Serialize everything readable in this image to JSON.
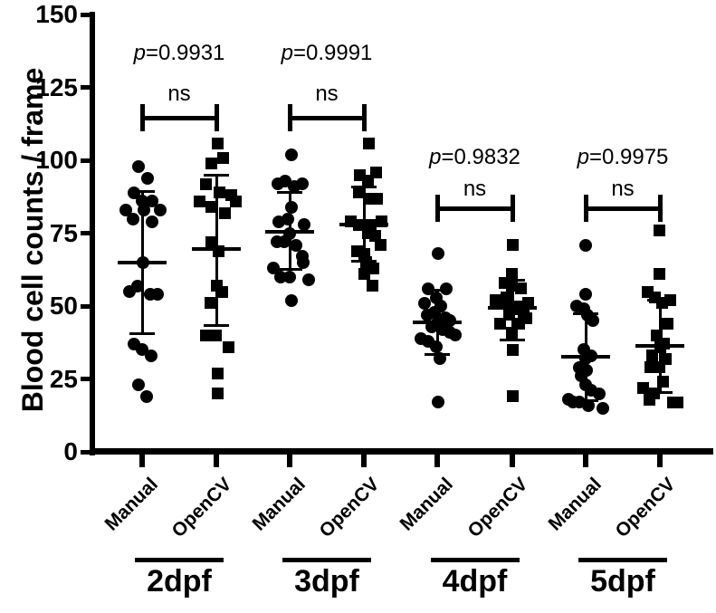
{
  "chart_data": {
    "type": "scatter",
    "title": "",
    "xlabel": "",
    "ylabel": "Blood cell counts / frame",
    "ylim": [
      0,
      150
    ],
    "yticks": [
      0,
      25,
      50,
      75,
      100,
      125,
      150
    ],
    "grid": false,
    "legend_position": "none",
    "marker_key": {
      "Manual": "circle",
      "OpenCV": "square"
    },
    "timepoints": [
      "2dpf",
      "3dpf",
      "4dpf",
      "5dpf"
    ],
    "error_bar_style": "mean with upper/lower whiskers",
    "groups": [
      {
        "timepoint": "2dpf",
        "method": "Manual",
        "marker": "circle",
        "mean": 65,
        "whisker_upper": 89.5,
        "whisker_lower": 40.5,
        "points_value_jitter": [
          [
            98,
            -4
          ],
          [
            94,
            6
          ],
          [
            89,
            -9
          ],
          [
            86,
            0
          ],
          [
            86,
            11
          ],
          [
            83,
            -18
          ],
          [
            83,
            2
          ],
          [
            83,
            20
          ],
          [
            80,
            -10
          ],
          [
            79,
            11
          ],
          [
            65,
            1
          ],
          [
            57,
            -5
          ],
          [
            55,
            -14
          ],
          [
            54,
            9
          ],
          [
            54,
            17
          ],
          [
            37,
            -9
          ],
          [
            35,
            0
          ],
          [
            33,
            10
          ],
          [
            23,
            -4
          ],
          [
            19,
            5
          ]
        ]
      },
      {
        "timepoint": "2dpf",
        "method": "OpenCV",
        "marker": "square",
        "mean": 69.5,
        "whisker_upper": 95,
        "whisker_lower": 43.5,
        "points_value_jitter": [
          [
            106,
            1
          ],
          [
            101,
            7
          ],
          [
            99,
            -6
          ],
          [
            92,
            -12
          ],
          [
            89,
            3
          ],
          [
            88,
            16
          ],
          [
            86,
            -19
          ],
          [
            86,
            21
          ],
          [
            84,
            -6
          ],
          [
            82,
            9
          ],
          [
            72,
            -6
          ],
          [
            69,
            2
          ],
          [
            57,
            0
          ],
          [
            55,
            6
          ],
          [
            51,
            -7
          ],
          [
            40,
            -12
          ],
          [
            40,
            -1
          ],
          [
            36,
            13
          ],
          [
            27,
            1
          ],
          [
            20,
            1
          ]
        ]
      },
      {
        "timepoint": "3dpf",
        "method": "Manual",
        "marker": "circle",
        "mean": 75.5,
        "whisker_upper": 89,
        "whisker_lower": 62.5,
        "points_value_jitter": [
          [
            102,
            2
          ],
          [
            93,
            -5
          ],
          [
            92,
            -13
          ],
          [
            92,
            14
          ],
          [
            91,
            5
          ],
          [
            84,
            2
          ],
          [
            80,
            -2
          ],
          [
            79,
            -12
          ],
          [
            78,
            16
          ],
          [
            75,
            0
          ],
          [
            72,
            -14
          ],
          [
            72,
            -6
          ],
          [
            71,
            7
          ],
          [
            67,
            14
          ],
          [
            65,
            15
          ],
          [
            63,
            -18
          ],
          [
            60,
            -10
          ],
          [
            60,
            0
          ],
          [
            59,
            21
          ],
          [
            52,
            2
          ]
        ]
      },
      {
        "timepoint": "3dpf",
        "method": "OpenCV",
        "marker": "square",
        "mean": 78,
        "whisker_upper": 91,
        "whisker_lower": 65.5,
        "points_value_jitter": [
          [
            106,
            5
          ],
          [
            96,
            13
          ],
          [
            95,
            -5
          ],
          [
            93,
            4
          ],
          [
            89,
            -6
          ],
          [
            87,
            5
          ],
          [
            87,
            14
          ],
          [
            79,
            -15
          ],
          [
            79,
            19
          ],
          [
            78,
            -6
          ],
          [
            78,
            7
          ],
          [
            75,
            4
          ],
          [
            74,
            12
          ],
          [
            71,
            18
          ],
          [
            69,
            -8
          ],
          [
            68,
            0
          ],
          [
            65,
            2
          ],
          [
            63,
            10
          ],
          [
            61,
            0
          ],
          [
            57,
            9
          ]
        ]
      },
      {
        "timepoint": "4dpf",
        "method": "Manual",
        "marker": "circle",
        "mean": 44.5,
        "whisker_upper": 55.5,
        "whisker_lower": 33.5,
        "points_value_jitter": [
          [
            68,
            1
          ],
          [
            56,
            -10
          ],
          [
            56,
            10
          ],
          [
            53,
            -1
          ],
          [
            51,
            -14
          ],
          [
            50,
            4
          ],
          [
            48,
            -3
          ],
          [
            47,
            -11
          ],
          [
            46,
            9
          ],
          [
            45,
            14
          ],
          [
            44,
            0
          ],
          [
            43,
            -6
          ],
          [
            42,
            6
          ],
          [
            41,
            14
          ],
          [
            40,
            20
          ],
          [
            39,
            -18
          ],
          [
            38,
            -10
          ],
          [
            36,
            -1
          ],
          [
            32,
            3
          ],
          [
            17,
            1
          ]
        ]
      },
      {
        "timepoint": "4dpf",
        "method": "OpenCV",
        "marker": "square",
        "mean": 49.5,
        "whisker_upper": 59,
        "whisker_lower": 38.5,
        "points_value_jitter": [
          [
            71,
            0
          ],
          [
            61,
            -1
          ],
          [
            58,
            -9
          ],
          [
            57,
            -1
          ],
          [
            56,
            9
          ],
          [
            53,
            -7
          ],
          [
            52,
            -19
          ],
          [
            51,
            -11
          ],
          [
            51,
            17
          ],
          [
            50,
            -4
          ],
          [
            50,
            6
          ],
          [
            49,
            0
          ],
          [
            48,
            12
          ],
          [
            47,
            -4
          ],
          [
            46,
            15
          ],
          [
            44,
            -14
          ],
          [
            44,
            7
          ],
          [
            41,
            -1
          ],
          [
            35,
            0
          ],
          [
            19,
            0
          ]
        ]
      },
      {
        "timepoint": "5dpf",
        "method": "Manual",
        "marker": "circle",
        "mean": 32.5,
        "whisker_upper": 47.5,
        "whisker_lower": 17.5,
        "points_value_jitter": [
          [
            71,
            0
          ],
          [
            54,
            0
          ],
          [
            50,
            -10
          ],
          [
            49,
            -2
          ],
          [
            47,
            2
          ],
          [
            45,
            8
          ],
          [
            35,
            -2
          ],
          [
            33,
            6
          ],
          [
            32,
            0
          ],
          [
            29,
            -7
          ],
          [
            28,
            1
          ],
          [
            26,
            -5
          ],
          [
            23,
            0
          ],
          [
            21,
            6
          ],
          [
            20,
            15
          ],
          [
            18,
            -19
          ],
          [
            17,
            -14
          ],
          [
            17,
            -7
          ],
          [
            16,
            3
          ],
          [
            15,
            19
          ]
        ]
      },
      {
        "timepoint": "5dpf",
        "method": "OpenCV",
        "marker": "square",
        "mean": 36.5,
        "whisker_upper": 52,
        "whisker_lower": 20.5,
        "points_value_jitter": [
          [
            76,
            -1
          ],
          [
            61,
            -1
          ],
          [
            55,
            -14
          ],
          [
            53,
            -6
          ],
          [
            52,
            11
          ],
          [
            51,
            2
          ],
          [
            44,
            8
          ],
          [
            40,
            -4
          ],
          [
            37,
            4
          ],
          [
            36,
            0
          ],
          [
            33,
            -9
          ],
          [
            32,
            6
          ],
          [
            29,
            -11
          ],
          [
            29,
            -1
          ],
          [
            24,
            3
          ],
          [
            22,
            -19
          ],
          [
            20,
            -7
          ],
          [
            18,
            -12
          ],
          [
            17,
            14
          ],
          [
            17,
            19
          ]
        ]
      }
    ],
    "comparisons": [
      {
        "timepoint": "2dpf",
        "p_label": "p=0.9931",
        "sig_label": "ns"
      },
      {
        "timepoint": "3dpf",
        "p_label": "p=0.9991",
        "sig_label": "ns"
      },
      {
        "timepoint": "4dpf",
        "p_label": "p=0.9832",
        "sig_label": "ns"
      },
      {
        "timepoint": "5dpf",
        "p_label": "p=0.9975",
        "sig_label": "ns"
      }
    ]
  }
}
